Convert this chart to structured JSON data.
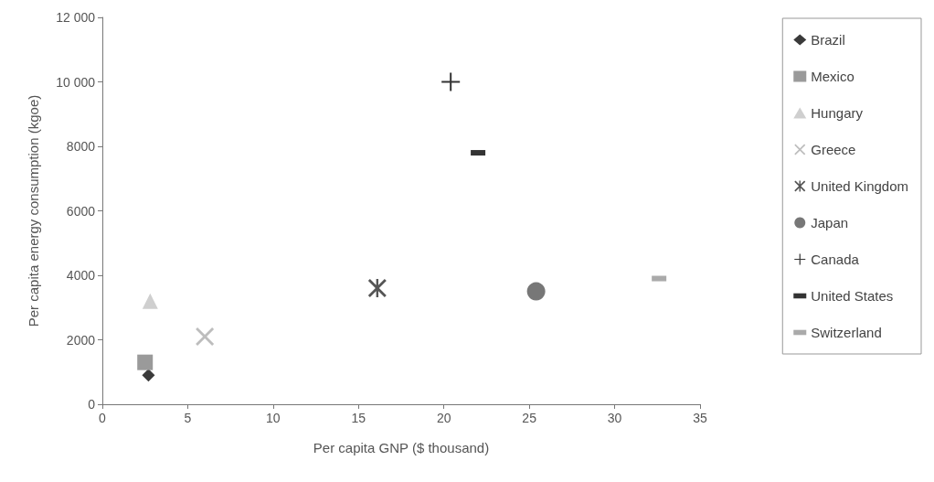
{
  "chart_data": {
    "type": "scatter",
    "xlabel": "Per capita GNP ($ thousand)",
    "ylabel": "Per capita energy consumption (kgoe)",
    "xlim": [
      0,
      35
    ],
    "xticks": [
      0,
      5,
      10,
      15,
      20,
      25,
      30,
      35
    ],
    "ylim": [
      0,
      12000
    ],
    "yticks": [
      0,
      2000,
      4000,
      6000,
      8000,
      {
        "value": 10000,
        "label": "10 000"
      },
      {
        "value": 12000,
        "label": "12 000"
      }
    ],
    "grid": false,
    "legend": "right",
    "series": [
      {
        "name": "Brazil",
        "color": "#3a3a3a",
        "marker": "diamond",
        "x": [
          2.7
        ],
        "values": [
          900
        ]
      },
      {
        "name": "Mexico",
        "color": "#9a9a9a",
        "marker": "square",
        "x": [
          2.5
        ],
        "values": [
          1300
        ]
      },
      {
        "name": "Hungary",
        "color": "#cfcfcf",
        "marker": "triangle",
        "x": [
          2.8
        ],
        "values": [
          3200
        ]
      },
      {
        "name": "Greece",
        "color": "#bdbdbd",
        "marker": "cross",
        "x": [
          6
        ],
        "values": [
          2100
        ]
      },
      {
        "name": "United Kingdom",
        "color": "#555555",
        "marker": "star",
        "x": [
          16.1
        ],
        "values": [
          3600
        ]
      },
      {
        "name": "Japan",
        "color": "#777777",
        "marker": "circle",
        "x": [
          25.4
        ],
        "values": [
          3500
        ]
      },
      {
        "name": "Canada",
        "color": "#333333",
        "marker": "plus",
        "x": [
          20.4
        ],
        "values": [
          10000
        ]
      },
      {
        "name": "United States",
        "color": "#333333",
        "x": [
          22
        ],
        "values": [
          7800
        ]
      },
      {
        "name": "Switzerland",
        "color": "#aaaaaa",
        "x": [
          32.6
        ],
        "values": [
          3900
        ]
      }
    ]
  }
}
